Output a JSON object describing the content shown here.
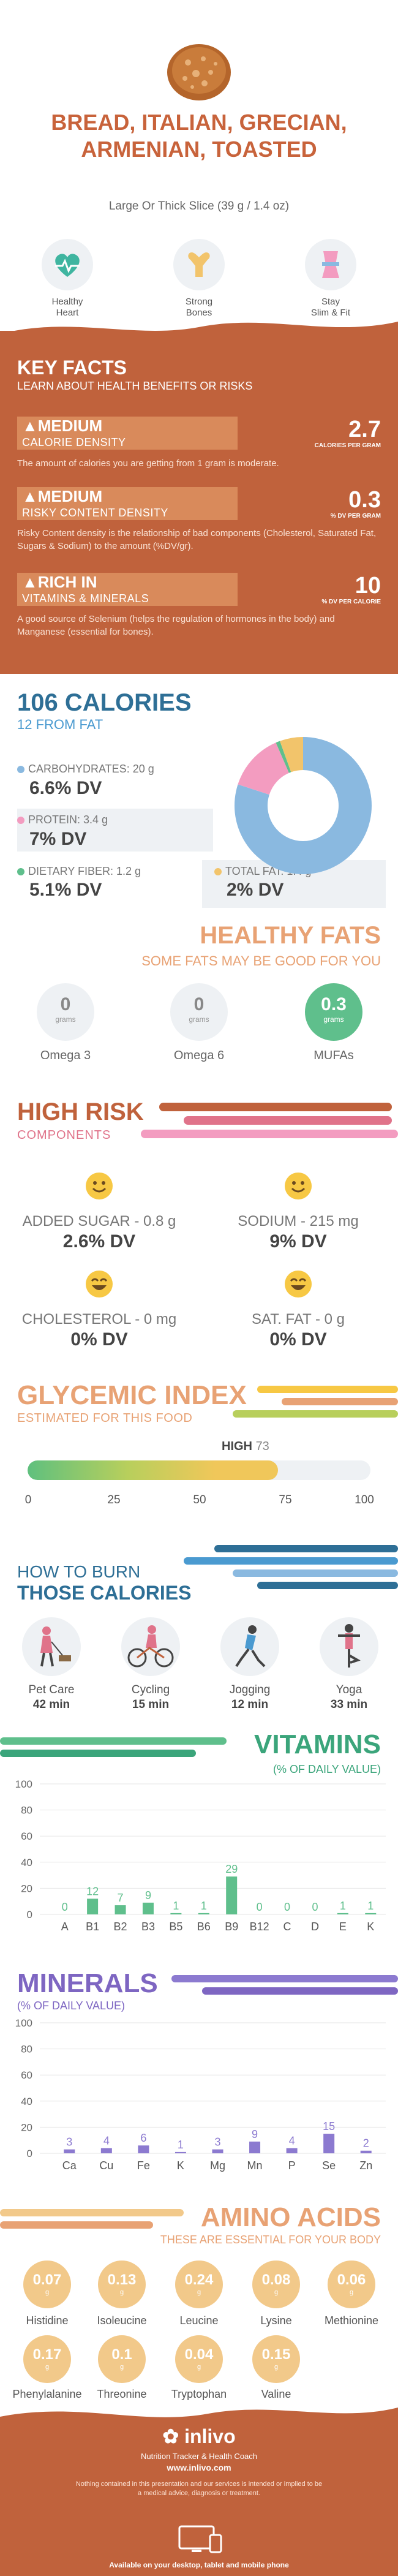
{
  "header": {
    "title": "BREAD, ITALIAN, GRECIAN, ARMENIAN, TOASTED",
    "serving": "Large Or Thick Slice (39 g / 1.4 oz)",
    "benefits": [
      {
        "label_1": "Healthy",
        "label_2": "Heart",
        "icon": "heart-icon"
      },
      {
        "label_1": "Strong",
        "label_2": "Bones",
        "icon": "bone-icon"
      },
      {
        "label_1": "Stay",
        "label_2": "Slim & Fit",
        "icon": "waist-icon"
      }
    ]
  },
  "key_facts": {
    "title": "KEY FACTS",
    "subtitle": "LEARN ABOUT HEALTH BENEFITS OR RISKS",
    "items": [
      {
        "level": "MEDIUM",
        "name": "CALORIE DENSITY",
        "value": "2.7",
        "unit": "CALORIES PER GRAM",
        "desc": "The amount of calories you are getting from 1 gram is moderate."
      },
      {
        "level": "MEDIUM",
        "name": "RISKY CONTENT DENSITY",
        "value": "0.3",
        "unit": "% DV PER GRAM",
        "desc": "Risky Content density is the relationship of bad components (Cholesterol, Saturated Fat, Sugars & Sodium) to the amount (%DV/gr)."
      },
      {
        "level": "RICH  IN",
        "name": "VITAMINS & MINERALS",
        "value": "10",
        "unit": "% DV PER CALORIE",
        "desc": "A good source of Selenium (helps the regulation of hormones in the body) and Manganese (essential for bones)."
      }
    ]
  },
  "calories": {
    "title": "106 CALORIES",
    "from_fat": "12 FROM FAT",
    "carbs": {
      "label": "CARBOHYDRATES: 20 g",
      "dv": "6.6% DV",
      "color": "#8ab9e0"
    },
    "protein": {
      "label": "PROTEIN: 3.4 g",
      "dv": "7% DV",
      "color": "#f39cc0"
    },
    "fiber": {
      "label": "DIETARY FIBER: 1.2 g",
      "dv": "5.1% DV",
      "color": "#5fbf8c"
    },
    "fat": {
      "label": "TOTAL FAT: 1.4 g",
      "dv": "2% DV",
      "color": "#f2c46b"
    },
    "donut": [
      {
        "name": "carbs",
        "value": 80,
        "color": "#8ab9e0"
      },
      {
        "name": "protein",
        "value": 13.5,
        "color": "#f39cc0"
      },
      {
        "name": "fiber",
        "value": 1,
        "color": "#5fbf8c"
      },
      {
        "name": "fat",
        "value": 5.5,
        "color": "#f2c46b"
      }
    ]
  },
  "healthy_fats": {
    "title": "HEALTHY FATS",
    "subtitle": "SOME FATS MAY BE GOOD FOR YOU",
    "unit": "grams",
    "items": [
      {
        "name": "Omega 3",
        "value": "0"
      },
      {
        "name": "Omega 6",
        "value": "0"
      },
      {
        "name": "MUFAs",
        "value": "0.3"
      }
    ]
  },
  "high_risk": {
    "title": "HIGH RISK",
    "subtitle": "COMPONENTS",
    "items": [
      {
        "label": "ADDED SUGAR - 0.8 g",
        "dv": "2.6% DV"
      },
      {
        "label": "SODIUM - 215 mg",
        "dv": "9% DV"
      },
      {
        "label": "CHOLESTEROL - 0 mg",
        "dv": "0% DV"
      },
      {
        "label": "SAT. FAT - 0 g",
        "dv": "0% DV"
      }
    ]
  },
  "glycemic": {
    "title": "GLYCEMIC INDEX",
    "subtitle": "ESTIMATED FOR THIS FOOD",
    "level": "HIGH",
    "value": "73",
    "ticks": [
      "0",
      "25",
      "50",
      "75",
      "100"
    ]
  },
  "burn": {
    "title_1": "HOW TO BURN",
    "title_2": "THOSE CALORIES",
    "activities": [
      {
        "name": "Pet Care",
        "minutes": "42 min",
        "icon": "dog-walking-icon"
      },
      {
        "name": "Cycling",
        "minutes": "15 min",
        "icon": "cycling-icon"
      },
      {
        "name": "Jogging",
        "minutes": "12 min",
        "icon": "jogging-icon"
      },
      {
        "name": "Yoga",
        "minutes": "33 min",
        "icon": "yoga-icon"
      }
    ]
  },
  "vitamins": {
    "title": "VITAMINS",
    "subtitle": "(% OF DAILY VALUE)"
  },
  "minerals": {
    "title": "MINERALS",
    "subtitle": "(% OF DAILY VALUE)"
  },
  "chart_data": [
    {
      "type": "bar",
      "categories": [
        "A",
        "B1",
        "B2",
        "B3",
        "B5",
        "B6",
        "B9",
        "B12",
        "C",
        "D",
        "E",
        "K"
      ],
      "values": [
        0,
        12,
        7,
        9,
        1,
        1,
        29,
        0,
        0,
        0,
        1,
        1
      ],
      "ylim": [
        0,
        100
      ],
      "yticks": [
        "0",
        "20",
        "40",
        "60",
        "80",
        "100"
      ],
      "color": "#5fbf8c"
    },
    {
      "type": "bar",
      "categories": [
        "Ca",
        "Cu",
        "Fe",
        "K",
        "Mg",
        "Mn",
        "P",
        "Se",
        "Zn"
      ],
      "values": [
        3,
        4,
        6,
        1,
        3,
        9,
        4,
        15,
        2
      ],
      "ylim": [
        0,
        100
      ],
      "yticks": [
        "0",
        "20",
        "40",
        "60",
        "80",
        "100"
      ],
      "color": "#8c7ad0"
    }
  ],
  "amino": {
    "title": "AMINO ACIDS",
    "subtitle": "THESE ARE ESSENTIAL FOR YOUR BODY",
    "unit": "g",
    "items": [
      {
        "name": "Histidine",
        "value": "0.07"
      },
      {
        "name": "Isoleucine",
        "value": "0.13"
      },
      {
        "name": "Leucine",
        "value": "0.24"
      },
      {
        "name": "Lysine",
        "value": "0.08"
      },
      {
        "name": "Methionine",
        "value": "0.06"
      },
      {
        "name": "Phenylalanine",
        "value": "0.17"
      },
      {
        "name": "Threonine",
        "value": "0.1"
      },
      {
        "name": "Tryptophan",
        "value": "0.04"
      },
      {
        "name": "Valine",
        "value": "0.15"
      }
    ]
  },
  "footer": {
    "brand": "inlivo",
    "tagline": "Nutrition Tracker & Health Coach",
    "url": "www.inlivo.com",
    "disclaimer": "Nothing contained in this presentation and our services is intended or implied to be a medical advice, diagnosis or treatment.",
    "available": "Available on your desktop, tablet and mobile phone"
  }
}
